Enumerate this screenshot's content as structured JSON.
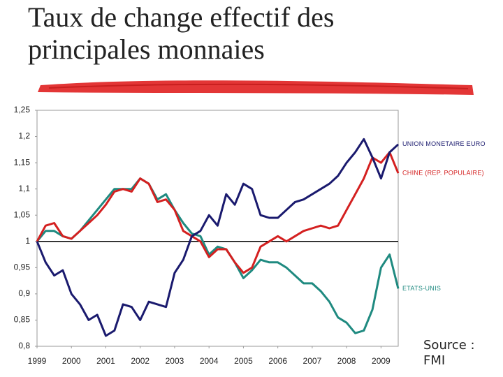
{
  "chart_data": {
    "type": "line",
    "title": "Taux de change effectif des principales monnaies",
    "source": "Source : FMI",
    "x": [
      1999.0,
      1999.25,
      1999.5,
      1999.75,
      2000.0,
      2000.25,
      2000.5,
      2000.75,
      2001.0,
      2001.25,
      2001.5,
      2001.75,
      2002.0,
      2002.25,
      2002.5,
      2002.75,
      2003.0,
      2003.25,
      2003.5,
      2003.75,
      2004.0,
      2004.25,
      2004.5,
      2004.75,
      2005.0,
      2005.25,
      2005.5,
      2005.75,
      2006.0,
      2006.25,
      2006.5,
      2006.75,
      2007.0,
      2007.25,
      2007.5,
      2007.75,
      2008.0,
      2008.25,
      2008.5,
      2008.75,
      2009.0,
      2009.25,
      2009.5
    ],
    "series": [
      {
        "name": "UNION MONETAIRE EURO",
        "color": "#1a1a6e",
        "values": [
          1.0,
          0.96,
          0.935,
          0.945,
          0.9,
          0.88,
          0.85,
          0.86,
          0.82,
          0.83,
          0.88,
          0.875,
          0.85,
          0.885,
          0.88,
          0.875,
          0.94,
          0.965,
          1.01,
          1.02,
          1.05,
          1.03,
          1.09,
          1.07,
          1.11,
          1.1,
          1.05,
          1.045,
          1.045,
          1.06,
          1.075,
          1.08,
          1.09,
          1.1,
          1.11,
          1.125,
          1.15,
          1.17,
          1.195,
          1.16,
          1.12,
          1.17,
          1.185
        ]
      },
      {
        "name": "CHINE (REP. POPULAIRE)",
        "color": "#d42020",
        "values": [
          1.0,
          1.03,
          1.035,
          1.01,
          1.005,
          1.02,
          1.035,
          1.05,
          1.07,
          1.095,
          1.1,
          1.095,
          1.12,
          1.11,
          1.075,
          1.08,
          1.06,
          1.02,
          1.01,
          1.0,
          0.97,
          0.985,
          0.985,
          0.96,
          0.94,
          0.95,
          0.99,
          1.0,
          1.01,
          1.0,
          1.01,
          1.02,
          1.025,
          1.03,
          1.025,
          1.03,
          1.06,
          1.09,
          1.12,
          1.16,
          1.15,
          1.17,
          1.13
        ]
      },
      {
        "name": "ETATS-UNIS",
        "color": "#1f8a80",
        "values": [
          1.0,
          1.02,
          1.02,
          1.01,
          1.005,
          1.02,
          1.04,
          1.06,
          1.08,
          1.1,
          1.1,
          1.1,
          1.12,
          1.11,
          1.08,
          1.09,
          1.06,
          1.035,
          1.015,
          1.01,
          0.975,
          0.99,
          0.985,
          0.96,
          0.93,
          0.945,
          0.965,
          0.96,
          0.96,
          0.95,
          0.935,
          0.92,
          0.92,
          0.905,
          0.885,
          0.855,
          0.845,
          0.825,
          0.83,
          0.87,
          0.95,
          0.975,
          0.91
        ]
      }
    ],
    "xlim": [
      1999,
      2009.5
    ],
    "xticks": [
      1999,
      2000,
      2001,
      2002,
      2003,
      2004,
      2005,
      2006,
      2007,
      2008,
      2009
    ],
    "ylim": [
      0.8,
      1.25
    ],
    "yticks": [
      {
        "value": 0.8,
        "label": "0,8"
      },
      {
        "value": 0.85,
        "label": "0,85"
      },
      {
        "value": 0.9,
        "label": "0,9"
      },
      {
        "value": 0.95,
        "label": "0,95"
      },
      {
        "value": 1,
        "label": "1"
      },
      {
        "value": 1.05,
        "label": "1,05"
      },
      {
        "value": 1.1,
        "label": "1,1"
      },
      {
        "value": 1.15,
        "label": "1,15"
      },
      {
        "value": 1.2,
        "label": "1,2"
      },
      {
        "value": 1.25,
        "label": "1,25"
      }
    ],
    "reference_line": 1,
    "grid": false
  }
}
